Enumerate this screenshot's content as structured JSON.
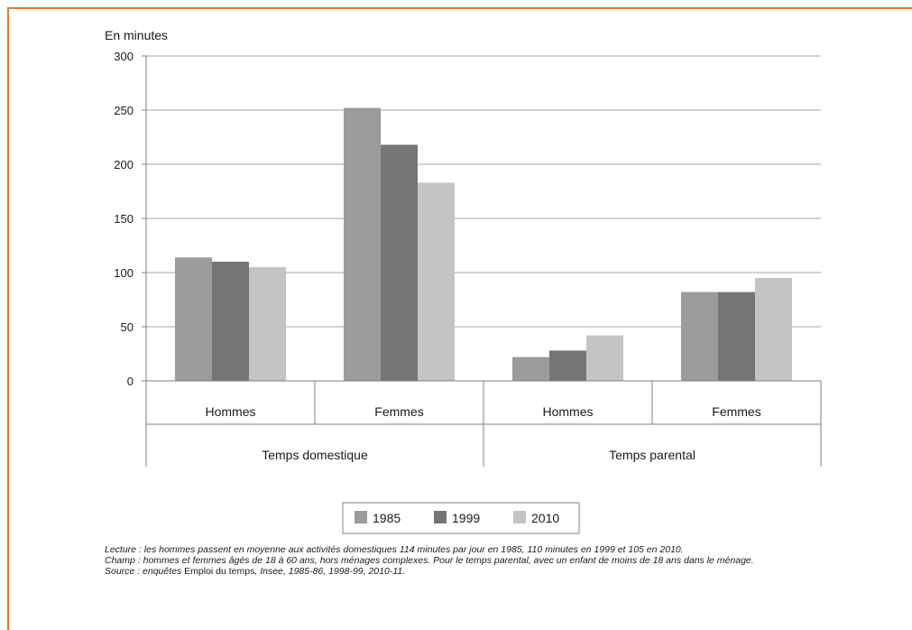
{
  "colors": {
    "frame": "#e07a2f",
    "grid": "#a6a6a6",
    "axis": "#808080",
    "series": [
      "#9a9b9d",
      "#747577",
      "#c3c4c6"
    ]
  },
  "chart_data": {
    "type": "bar",
    "ylabel": "En minutes",
    "ylim": [
      0,
      300
    ],
    "yticks": [
      0,
      50,
      100,
      150,
      200,
      250,
      300
    ],
    "grid": true,
    "legend_position": "bottom",
    "groups": [
      {
        "label": "Temps domestique",
        "categories": [
          "Hommes",
          "Femmes"
        ]
      },
      {
        "label": "Temps parental",
        "categories": [
          "Hommes",
          "Femmes"
        ]
      }
    ],
    "categories": [
      "Hommes",
      "Femmes",
      "Hommes",
      "Femmes"
    ],
    "series": [
      {
        "name": "1985",
        "values": [
          114,
          252,
          22,
          82
        ]
      },
      {
        "name": "1999",
        "values": [
          110,
          218,
          28,
          82
        ]
      },
      {
        "name": "2010",
        "values": [
          105,
          183,
          42,
          95
        ]
      }
    ]
  },
  "notes": {
    "lecture": "Lecture : les hommes passent en moyenne aux activités domestiques 114 minutes par jour en 1985, 110 minutes en 1999 et 105 en 2010.",
    "champ": "Champ : hommes et femmes âgés de 18 à 60 ans, hors ménages complexes. Pour le temps parental, avec un enfant de moins de 18 ans dans le ménage.",
    "source_prefix": "Source : enquêtes ",
    "source_title": "Emploi du temps",
    "source_sep": ", ",
    "source_org": "Insee",
    "source_years": ", 1985-86, 1998-99, 2010-11."
  }
}
